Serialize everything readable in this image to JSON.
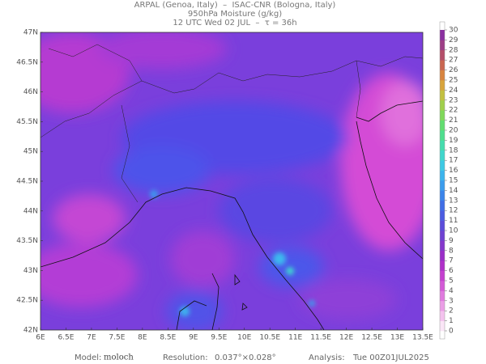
{
  "header": {
    "line1": "ARPAL (Genoa, Italy)  –  ISAC-CNR (Bologna, Italy)",
    "line2": "950hPa Moisture (g/kg)",
    "line3": "12 UTC Wed 02 JUL  –  τ = 36h"
  },
  "map": {
    "xlim": [
      6,
      13.5
    ],
    "ylim": [
      42,
      47
    ],
    "xticks": [
      {
        "value": 6,
        "label": "6E"
      },
      {
        "value": 6.5,
        "label": "6.5E"
      },
      {
        "value": 7,
        "label": "7E"
      },
      {
        "value": 7.5,
        "label": "7.5E"
      },
      {
        "value": 8,
        "label": "8E"
      },
      {
        "value": 8.5,
        "label": "8.5E"
      },
      {
        "value": 9,
        "label": "9E"
      },
      {
        "value": 9.5,
        "label": "9.5E"
      },
      {
        "value": 10,
        "label": "10E"
      },
      {
        "value": 10.5,
        "label": "10.5E"
      },
      {
        "value": 11,
        "label": "11E"
      },
      {
        "value": 11.5,
        "label": "11.5E"
      },
      {
        "value": 12,
        "label": "12E"
      },
      {
        "value": 12.5,
        "label": "12.5E"
      },
      {
        "value": 13,
        "label": "13E"
      },
      {
        "value": 13.5,
        "label": "13.5E"
      }
    ],
    "yticks": [
      {
        "value": 42,
        "label": "42N"
      },
      {
        "value": 42.5,
        "label": "42.5N"
      },
      {
        "value": 43,
        "label": "43N"
      },
      {
        "value": 43.5,
        "label": "43.5N"
      },
      {
        "value": 44,
        "label": "44N"
      },
      {
        "value": 44.5,
        "label": "44.5N"
      },
      {
        "value": 45,
        "label": "45N"
      },
      {
        "value": 45.5,
        "label": "45.5N"
      },
      {
        "value": 46,
        "label": "46N"
      },
      {
        "value": 46.5,
        "label": "46.5N"
      },
      {
        "value": 47,
        "label": "47N"
      }
    ]
  },
  "colorbar": {
    "ticks": [
      0,
      1,
      2,
      3,
      4,
      5,
      6,
      7,
      8,
      9,
      10,
      11,
      12,
      13,
      14,
      15,
      16,
      17,
      18,
      19,
      20,
      21,
      22,
      23,
      24,
      25,
      26,
      27,
      28,
      29,
      30
    ],
    "colors": [
      "#fbe6f7",
      "#f4c2ee",
      "#eb9ee6",
      "#e07ade",
      "#d35ad6",
      "#c440cf",
      "#b030c9",
      "#9a2ec8",
      "#8538cc",
      "#6f42d2",
      "#5b4cda",
      "#4b5be1",
      "#406ee6",
      "#3b84ea",
      "#3b9ced",
      "#3cb4ed",
      "#3dc9e4",
      "#40d6cc",
      "#45dcae",
      "#4fde8e",
      "#62dd70",
      "#7fd85a",
      "#a0cf4c",
      "#c2c040",
      "#d8a43c",
      "#d8843f",
      "#c96650",
      "#b44f6a",
      "#9d3e86",
      "#8a2fa0"
    ]
  },
  "footer": {
    "model_label": "Model:",
    "model": "moloch",
    "resolution_label": "Resolution:",
    "resolution": "0.037°×0.028°",
    "analysis_label": "Analysis:",
    "analysis": "Tue 00Z01JUL2025"
  }
}
